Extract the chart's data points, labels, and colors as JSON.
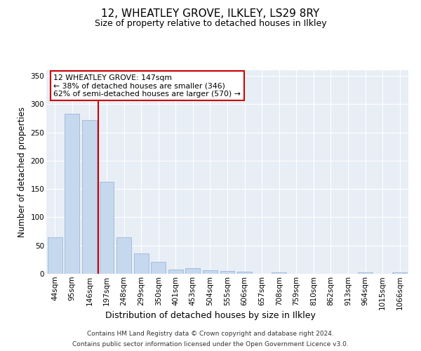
{
  "title": "12, WHEATLEY GROVE, ILKLEY, LS29 8RY",
  "subtitle": "Size of property relative to detached houses in Ilkley",
  "xlabel": "Distribution of detached houses by size in Ilkley",
  "ylabel": "Number of detached properties",
  "categories": [
    "44sqm",
    "95sqm",
    "146sqm",
    "197sqm",
    "248sqm",
    "299sqm",
    "350sqm",
    "401sqm",
    "453sqm",
    "504sqm",
    "555sqm",
    "606sqm",
    "657sqm",
    "708sqm",
    "759sqm",
    "810sqm",
    "862sqm",
    "913sqm",
    "964sqm",
    "1015sqm",
    "1066sqm"
  ],
  "values": [
    65,
    283,
    272,
    163,
    65,
    36,
    21,
    8,
    10,
    6,
    5,
    4,
    0,
    3,
    0,
    0,
    0,
    0,
    2,
    0,
    2
  ],
  "bar_color": "#c5d8ee",
  "bar_edge_color": "#9ab8d8",
  "property_line_x": 2.5,
  "annotation_text": "12 WHEATLEY GROVE: 147sqm\n← 38% of detached houses are smaller (346)\n62% of semi-detached houses are larger (570) →",
  "annotation_box_color": "#ffffff",
  "annotation_box_edge": "#cc0000",
  "property_line_color": "#cc0000",
  "background_color": "#e8eef6",
  "grid_color": "#ffffff",
  "footer_line1": "Contains HM Land Registry data © Crown copyright and database right 2024.",
  "footer_line2": "Contains public sector information licensed under the Open Government Licence v3.0.",
  "ylim": [
    0,
    360
  ],
  "yticks": [
    0,
    50,
    100,
    150,
    200,
    250,
    300,
    350
  ],
  "title_fontsize": 11,
  "subtitle_fontsize": 9
}
